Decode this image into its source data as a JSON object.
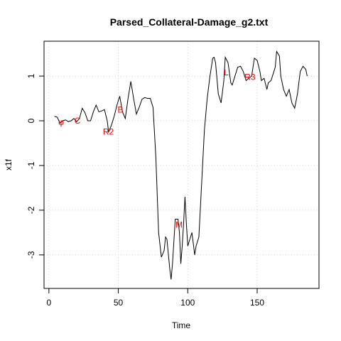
{
  "chart_data": {
    "type": "line",
    "title": "Parsed_Collateral-Damage_g2.txt",
    "xlabel": "Time",
    "ylabel": "x1f",
    "color": "#000000",
    "grid": true,
    "xlim": [
      -3.5,
      194.5
    ],
    "ylim": [
      -3.75,
      1.78
    ],
    "xticks": [
      0,
      50,
      100,
      150
    ],
    "yticks": [
      -3,
      -2,
      -1,
      0,
      1
    ],
    "x": [
      4,
      6,
      8,
      10,
      12,
      14,
      16,
      18,
      20,
      22,
      24,
      26,
      28,
      30,
      32,
      34,
      36,
      38,
      40,
      42,
      43,
      45,
      47,
      49,
      51,
      53,
      55,
      57,
      59,
      61,
      63,
      65,
      67,
      69,
      71,
      73,
      75,
      77,
      79,
      81,
      83,
      84,
      85,
      87,
      88,
      89,
      91,
      93,
      94,
      95,
      96,
      97,
      98,
      99,
      100,
      102,
      103,
      105,
      106,
      108,
      110,
      112,
      114,
      116,
      118,
      119,
      120,
      122,
      124,
      126,
      127,
      129,
      131,
      132,
      134,
      136,
      138,
      140,
      142,
      144,
      146,
      148,
      150,
      152,
      153,
      155,
      157,
      158,
      160,
      162,
      163,
      164,
      166,
      167,
      169,
      171,
      173,
      175,
      177,
      179,
      181,
      183,
      185,
      186
    ],
    "values": [
      0.1,
      0.08,
      -0.05,
      0.0,
      0.02,
      -0.02,
      0.0,
      0.05,
      -0.02,
      0.05,
      0.28,
      0.18,
      0.0,
      0.0,
      0.2,
      0.35,
      0.2,
      0.22,
      0.25,
      0.0,
      -0.25,
      -0.1,
      0.1,
      0.35,
      0.55,
      0.2,
      0.05,
      0.5,
      0.88,
      0.5,
      0.15,
      0.3,
      0.48,
      0.52,
      0.5,
      0.5,
      0.3,
      -0.8,
      -2.5,
      -3.05,
      -2.9,
      -2.6,
      -2.65,
      -3.3,
      -3.55,
      -3.2,
      -2.2,
      -2.2,
      -2.5,
      -3.2,
      -2.8,
      -2.3,
      -1.7,
      -2.3,
      -2.8,
      -2.6,
      -2.5,
      -3.0,
      -2.8,
      -2.6,
      -1.4,
      -0.2,
      0.5,
      1.0,
      1.4,
      1.42,
      1.3,
      0.6,
      0.4,
      0.9,
      1.42,
      1.3,
      0.85,
      0.8,
      1.0,
      1.2,
      1.22,
      1.1,
      0.9,
      0.95,
      1.0,
      1.4,
      1.35,
      1.1,
      0.9,
      0.95,
      0.7,
      0.85,
      0.9,
      1.1,
      1.2,
      1.55,
      1.45,
      1.0,
      0.7,
      0.55,
      0.7,
      0.4,
      0.28,
      0.6,
      1.1,
      1.22,
      1.15,
      1.0
    ],
    "annotation_color": "#ff0000",
    "annotations": [
      {
        "text": "φ",
        "x": 8.8,
        "y": -0.03
      },
      {
        "text": "C",
        "x": 20.6,
        "y": 0.0
      },
      {
        "text": "R2",
        "x": 42.8,
        "y": -0.25
      },
      {
        "text": "B",
        "x": 51.5,
        "y": 0.25
      },
      {
        "text": "M",
        "x": 93.8,
        "y": -2.33
      },
      {
        "text": "L",
        "x": 127.8,
        "y": 1.08
      },
      {
        "text": "R3",
        "x": 144.8,
        "y": 0.98
      }
    ]
  }
}
